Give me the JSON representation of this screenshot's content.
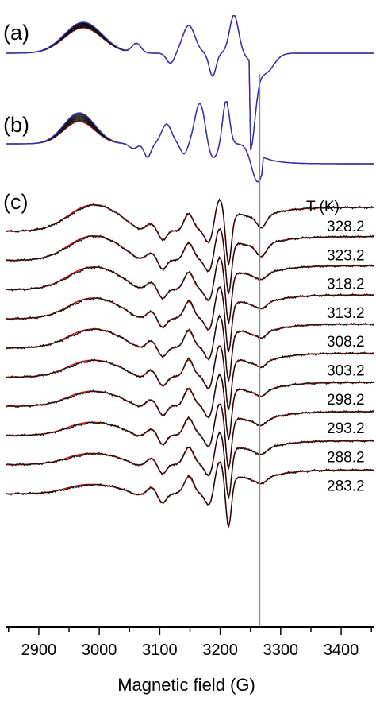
{
  "chart_data": {
    "type": "line",
    "xlabel": "Magnetic field (G)",
    "xlim": [
      2845,
      3455
    ],
    "x_ticks": [
      2900,
      3000,
      3100,
      3200,
      3300,
      3400
    ],
    "x_tick_labels": [
      "2900",
      "3000",
      "3100",
      "3200",
      "3300",
      "3400"
    ],
    "reference_line_x": 3265,
    "colors": {
      "data": "#111111",
      "fit": "#d11a1a",
      "envelope_high": "#2d35b8",
      "reference_line": "#8a8a8a",
      "axis": "#000000"
    },
    "panels": [
      {
        "label": "(a)",
        "kind": "simulated spectra stack",
        "lines": 14,
        "features_G": {
          "low_field_hump": 3000,
          "shoulder": 3065,
          "trough_1": 3120,
          "peak_1": 3155,
          "trough_2": 3187,
          "peak_2": 3222,
          "trough_main": 3262
        }
      },
      {
        "label": "(b)",
        "kind": "simulated spectra stack",
        "lines": 12,
        "features_G": {
          "low_field_hump": 2985,
          "peak_a": 3110,
          "trough_a": 3082,
          "trough_b": 3142,
          "peak_b": 3178,
          "trough_main": 3215
        }
      },
      {
        "label": "(c)",
        "kind": "experimental spectra with fits",
        "legend_title": "T (K)",
        "temperature_unit": "K",
        "temperatures": [
          328.2,
          323.2,
          318.2,
          313.2,
          308.2,
          303.2,
          298.2,
          293.2,
          288.2,
          283.2
        ],
        "temperature_labels": [
          "328.2",
          "323.2",
          "318.2",
          "313.2",
          "308.2",
          "303.2",
          "298.2",
          "293.2",
          "288.2",
          "283.2"
        ],
        "features_G": {
          "low_field_hump": 2995,
          "trough_1": 3082,
          "peak_1": 3102,
          "trough_2": 3145,
          "peak_2": 3172,
          "trough_main": 3213,
          "high_field_dip": 3245
        }
      }
    ]
  }
}
